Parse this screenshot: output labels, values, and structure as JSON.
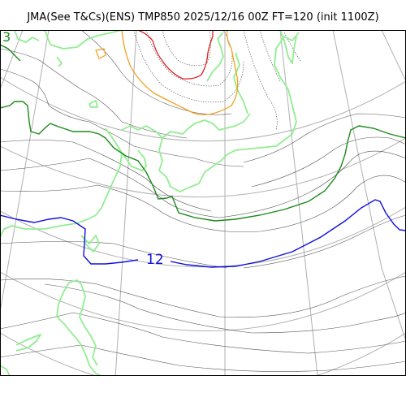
{
  "header": {
    "title": "JMA(See T&Cs)(ENS) TMP850 2025/12/16 00Z FT=120 (init 1100Z)"
  },
  "map": {
    "contour_labels": {
      "green_3": "3",
      "blue_12": "12",
      "orange_small": "0"
    },
    "colors": {
      "coastline": "#90ee90",
      "isotherm_3": "#1a8a1a",
      "isotherm_12": "#1010e0",
      "isotherm_orange": "#f0a020",
      "isotherm_red": "#e02020",
      "isotherm_thin": "#555555",
      "graticule": "#b0b0b0",
      "frame": "#000000"
    }
  }
}
